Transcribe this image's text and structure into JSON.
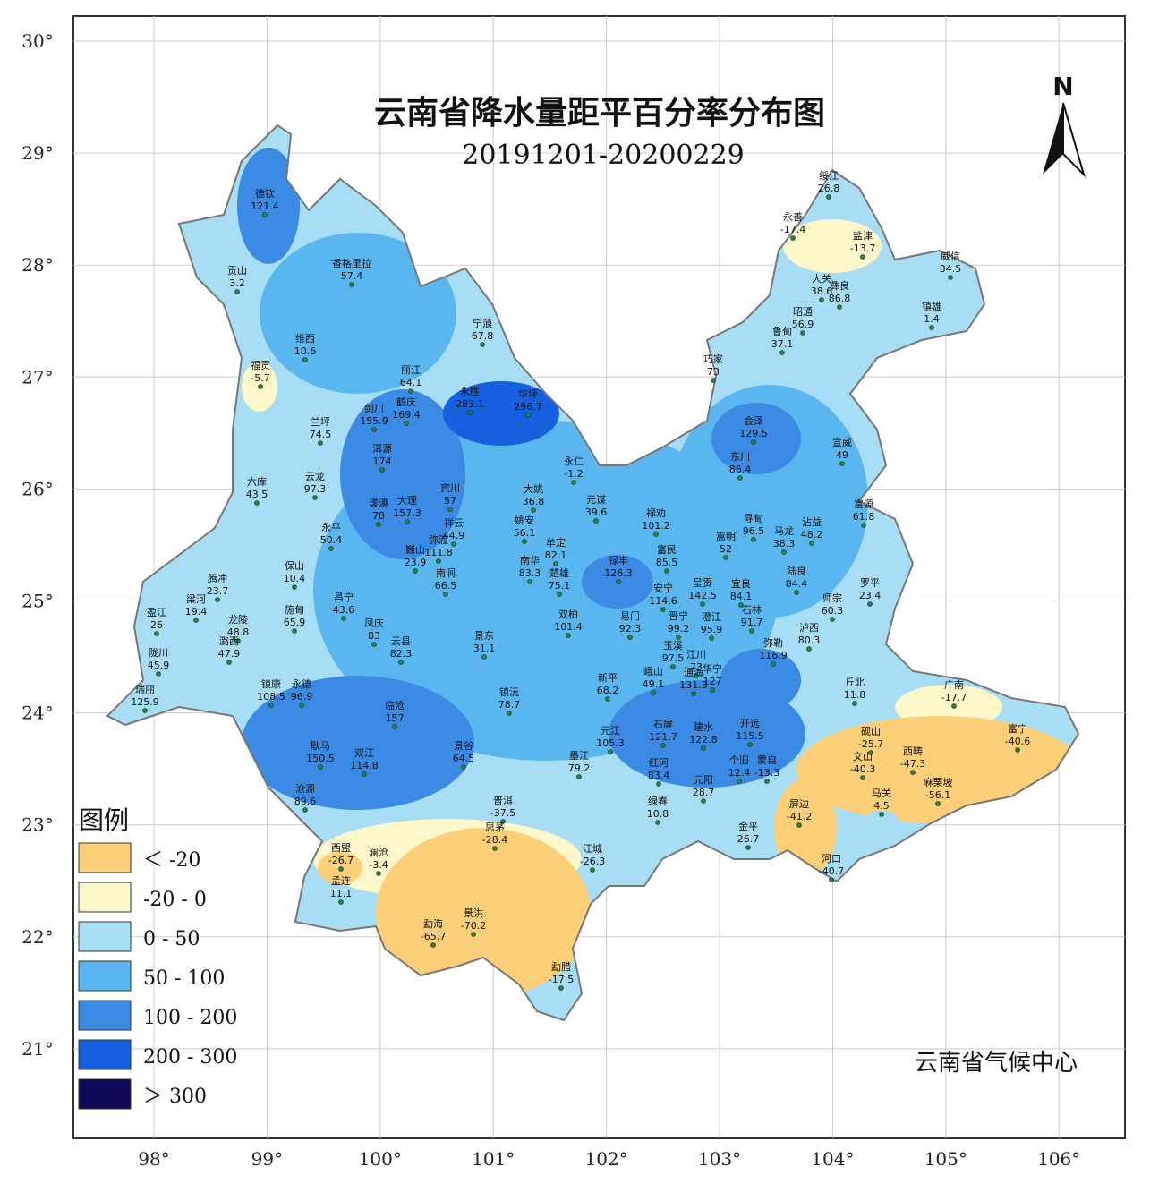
{
  "map": {
    "title": "云南省降水量距平百分率分布图",
    "subtitle": "20191201-20200229",
    "credit": "云南省气候中心",
    "north": "N",
    "legend": {
      "title": "图例",
      "items": [
        {
          "label": "＜ -20",
          "color": "#fdcf78"
        },
        {
          "label": "-20 - 0",
          "color": "#fdf7c9"
        },
        {
          "label": "0 - 50",
          "color": "#a8def5"
        },
        {
          "label": "50 - 100",
          "color": "#5ab6ef"
        },
        {
          "label": "100 - 200",
          "color": "#3b8be4"
        },
        {
          "label": "200 - 300",
          "color": "#1560de"
        },
        {
          "label": "＞ 300",
          "color": "#0d0a58"
        }
      ]
    },
    "x_ticks": [
      {
        "value": 98,
        "label": "98°"
      },
      {
        "value": 99,
        "label": "99°"
      },
      {
        "value": 100,
        "label": "100°"
      },
      {
        "value": 101,
        "label": "101°"
      },
      {
        "value": 102,
        "label": "102°"
      },
      {
        "value": 103,
        "label": "103°"
      },
      {
        "value": 104,
        "label": "104°"
      },
      {
        "value": 105,
        "label": "105°"
      },
      {
        "value": 106,
        "label": "106°"
      }
    ],
    "y_ticks": [
      {
        "value": 30,
        "label": "30°"
      },
      {
        "value": 29,
        "label": "29°"
      },
      {
        "value": 28,
        "label": "28°"
      },
      {
        "value": 27,
        "label": "27°"
      },
      {
        "value": 26,
        "label": "26°"
      },
      {
        "value": 25,
        "label": "25°"
      },
      {
        "value": 24,
        "label": "24°"
      },
      {
        "value": 23,
        "label": "23°"
      },
      {
        "value": 22,
        "label": "22°"
      },
      {
        "value": 21,
        "label": "21°"
      }
    ],
    "stations": [
      {
        "name": "德钦",
        "value": 121.4
      },
      {
        "name": "贡山",
        "value": 3.2
      },
      {
        "name": "香格里拉",
        "value": 57.4
      },
      {
        "name": "维西",
        "value": 10.6
      },
      {
        "name": "宁蒗",
        "value": 67.8
      },
      {
        "name": "福贡",
        "value": -5.7
      },
      {
        "name": "丽江",
        "value": 64.1
      },
      {
        "name": "永胜",
        "value": 283.1
      },
      {
        "name": "华坪",
        "value": 296.7
      },
      {
        "name": "剑川",
        "value": 155.9
      },
      {
        "name": "鹤庆",
        "value": 169.4
      },
      {
        "name": "兰坪",
        "value": 74.5
      },
      {
        "name": "洱源",
        "value": 174
      },
      {
        "name": "永仁",
        "value": -1.2
      },
      {
        "name": "六库",
        "value": 43.5
      },
      {
        "name": "云龙",
        "value": 97.3
      },
      {
        "name": "宾川",
        "value": 57
      },
      {
        "name": "大姚",
        "value": 36.8
      },
      {
        "name": "元谋",
        "value": 39.6
      },
      {
        "name": "漾濞",
        "value": 78
      },
      {
        "name": "大理",
        "value": 157.3
      },
      {
        "name": "祥云",
        "value": 44.9
      },
      {
        "name": "姚安",
        "value": 56.1
      },
      {
        "name": "永平",
        "value": 50.4
      },
      {
        "name": "弥渡",
        "value": 111.8
      },
      {
        "name": "巍山",
        "value": 23.9
      },
      {
        "name": "牟定",
        "value": 82.1
      },
      {
        "name": "南华",
        "value": 83.3
      },
      {
        "name": "楚雄",
        "value": 75.1
      },
      {
        "name": "禄丰",
        "value": 126.3
      },
      {
        "name": "南涧",
        "value": 66.5
      },
      {
        "name": "保山",
        "value": 10.4
      },
      {
        "name": "腾冲",
        "value": 23.7
      },
      {
        "name": "昌宁",
        "value": 43.6
      },
      {
        "name": "施甸",
        "value": 65.9
      },
      {
        "name": "梁河",
        "value": 19.4
      },
      {
        "name": "盈江",
        "value": 26
      },
      {
        "name": "龙陵",
        "value": 48.8
      },
      {
        "name": "凤庆",
        "value": 83
      },
      {
        "name": "云县",
        "value": 82.3
      },
      {
        "name": "陇川",
        "value": 45.9
      },
      {
        "name": "瑞丽",
        "value": 125.9
      },
      {
        "name": "潞西",
        "value": 47.9
      },
      {
        "name": "景东",
        "value": 31.1
      },
      {
        "name": "双柏",
        "value": 101.4
      },
      {
        "name": "易门",
        "value": 92.3
      },
      {
        "name": "镇康",
        "value": 108.5
      },
      {
        "name": "永德",
        "value": 96.9
      },
      {
        "name": "临沧",
        "value": 157
      },
      {
        "name": "镇沅",
        "value": 78.7
      },
      {
        "name": "新平",
        "value": 68.2
      },
      {
        "name": "耿马",
        "value": 150.5
      },
      {
        "name": "双江",
        "value": 114.8
      },
      {
        "name": "景谷",
        "value": 64.5
      },
      {
        "name": "元江",
        "value": 105.3
      },
      {
        "name": "墨江",
        "value": 79.2
      },
      {
        "name": "沧源",
        "value": 89.6
      },
      {
        "name": "禄劝",
        "value": 101.2
      },
      {
        "name": "富民",
        "value": 85.5
      },
      {
        "name": "寻甸",
        "value": 96.5
      },
      {
        "name": "嵩明",
        "value": 52
      },
      {
        "name": "晋宁",
        "value": 99.2
      },
      {
        "name": "呈贡",
        "value": 142.5
      },
      {
        "name": "澄江",
        "value": 95.9
      },
      {
        "name": "安宁",
        "value": 114.6
      },
      {
        "name": "宜良",
        "value": 84.1
      },
      {
        "name": "石林",
        "value": 91.7
      },
      {
        "name": "玉溪",
        "value": 97.5
      },
      {
        "name": "江川",
        "value": 73
      },
      {
        "name": "通海",
        "value": 131.3
      },
      {
        "name": "华宁",
        "value": 127
      },
      {
        "name": "峨山",
        "value": 49.1
      },
      {
        "name": "弥勒",
        "value": 116.9
      },
      {
        "name": "泸西",
        "value": 80.3
      },
      {
        "name": "陆良",
        "value": 84.4
      },
      {
        "name": "师宗",
        "value": 60.3
      },
      {
        "name": "罗平",
        "value": 23.4
      },
      {
        "name": "马龙",
        "value": 38.3
      },
      {
        "name": "沾益",
        "value": 48.2
      },
      {
        "name": "富源",
        "value": 61.8
      },
      {
        "name": "会泽",
        "value": 129.5
      },
      {
        "name": "东川",
        "value": 86.4
      },
      {
        "name": "宣威",
        "value": 49
      },
      {
        "name": "巧家",
        "value": 73
      },
      {
        "name": "昭通",
        "value": 56.9
      },
      {
        "name": "鲁甸",
        "value": 37.1
      },
      {
        "name": "大关",
        "value": 38.6
      },
      {
        "name": "彝良",
        "value": 86.8
      },
      {
        "name": "永善",
        "value": -17.4
      },
      {
        "name": "绥江",
        "value": 26.8
      },
      {
        "name": "盐津",
        "value": -13.7
      },
      {
        "name": "威信",
        "value": 34.5
      },
      {
        "name": "镇雄",
        "value": 1.4
      },
      {
        "name": "石屏",
        "value": 121.7
      },
      {
        "name": "建水",
        "value": 122.8
      },
      {
        "name": "开远",
        "value": 115.5
      },
      {
        "name": "红河",
        "value": 83.4
      },
      {
        "name": "元阳",
        "value": 28.7
      },
      {
        "name": "个旧",
        "value": 12.4
      },
      {
        "name": "蒙自",
        "value": -13.3
      },
      {
        "name": "绿春",
        "value": 10.8
      },
      {
        "name": "金平",
        "value": 26.7
      },
      {
        "name": "屏边",
        "value": -41.2
      },
      {
        "name": "河口",
        "value": -40.7
      },
      {
        "name": "丘北",
        "value": 11.8
      },
      {
        "name": "广南",
        "value": -17.7
      },
      {
        "name": "砚山",
        "value": -25.7
      },
      {
        "name": "文山",
        "value": -40.3
      },
      {
        "name": "西畴",
        "value": -47.3
      },
      {
        "name": "麻栗坡",
        "value": -56.1
      },
      {
        "name": "马关",
        "value": 4.5
      },
      {
        "name": "富宁",
        "value": -40.6
      },
      {
        "name": "普洱",
        "value": -37.5
      },
      {
        "name": "思茅",
        "value": -28.4
      },
      {
        "name": "江城",
        "value": -26.3
      },
      {
        "name": "西盟",
        "value": -26.7
      },
      {
        "name": "澜沧",
        "value": -3.4
      },
      {
        "name": "孟连",
        "value": 11.1
      },
      {
        "name": "勐海",
        "value": -65.7
      },
      {
        "name": "景洪",
        "value": -70.2
      },
      {
        "name": "勐腊",
        "value": -17.5
      }
    ]
  }
}
